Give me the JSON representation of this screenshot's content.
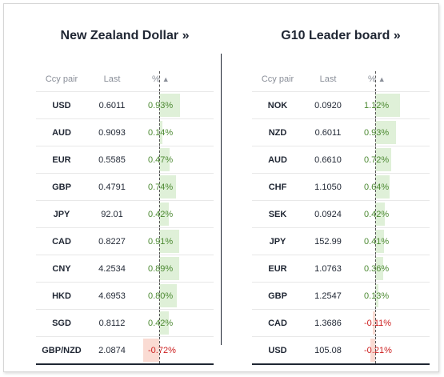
{
  "left": {
    "title": "New Zealand Dollar »",
    "headers": {
      "pair": "Ccy pair",
      "last": "Last",
      "pct": "%"
    },
    "sort_icon": "sort-asc-triangle-icon",
    "rows": [
      {
        "pair": "USD",
        "last": "0.6011",
        "pct": "0.93%",
        "value": 0.93
      },
      {
        "pair": "AUD",
        "last": "0.9093",
        "pct": "0.14%",
        "value": 0.14
      },
      {
        "pair": "EUR",
        "last": "0.5585",
        "pct": "0.47%",
        "value": 0.47
      },
      {
        "pair": "GBP",
        "last": "0.4791",
        "pct": "0.74%",
        "value": 0.74
      },
      {
        "pair": "JPY",
        "last": "92.01",
        "pct": "0.42%",
        "value": 0.42
      },
      {
        "pair": "CAD",
        "last": "0.8227",
        "pct": "0.91%",
        "value": 0.91
      },
      {
        "pair": "CNY",
        "last": "4.2534",
        "pct": "0.89%",
        "value": 0.89
      },
      {
        "pair": "HKD",
        "last": "4.6953",
        "pct": "0.80%",
        "value": 0.8
      },
      {
        "pair": "SGD",
        "last": "0.8112",
        "pct": "0.42%",
        "value": 0.42
      },
      {
        "pair": "GBP/NZD",
        "last": "2.0874",
        "pct": "-0.72%",
        "value": -0.72
      }
    ]
  },
  "right": {
    "title": "G10 Leader board »",
    "headers": {
      "pair": "Ccy pair",
      "last": "Last",
      "pct": "%"
    },
    "sort_icon": "sort-asc-triangle-icon",
    "rows": [
      {
        "pair": "NOK",
        "last": "0.0920",
        "pct": "1.12%",
        "value": 1.12
      },
      {
        "pair": "NZD",
        "last": "0.6011",
        "pct": "0.93%",
        "value": 0.93
      },
      {
        "pair": "AUD",
        "last": "0.6610",
        "pct": "0.72%",
        "value": 0.72
      },
      {
        "pair": "CHF",
        "last": "1.1050",
        "pct": "0.64%",
        "value": 0.64
      },
      {
        "pair": "SEK",
        "last": "0.0924",
        "pct": "0.42%",
        "value": 0.42
      },
      {
        "pair": "JPY",
        "last": "152.99",
        "pct": "0.41%",
        "value": 0.41
      },
      {
        "pair": "EUR",
        "last": "1.0763",
        "pct": "0.36%",
        "value": 0.36
      },
      {
        "pair": "GBP",
        "last": "1.2547",
        "pct": "0.13%",
        "value": 0.13
      },
      {
        "pair": "CAD",
        "last": "1.3686",
        "pct": "-0.11%",
        "value": -0.11
      },
      {
        "pair": "USD",
        "last": "105.08",
        "pct": "-0.21%",
        "value": -0.21
      }
    ]
  },
  "colors": {
    "positive": "#4d8a33",
    "negative": "#cc1f1f",
    "positive_bar": "#dff0d8",
    "negative_bar": "#fadbd3"
  }
}
